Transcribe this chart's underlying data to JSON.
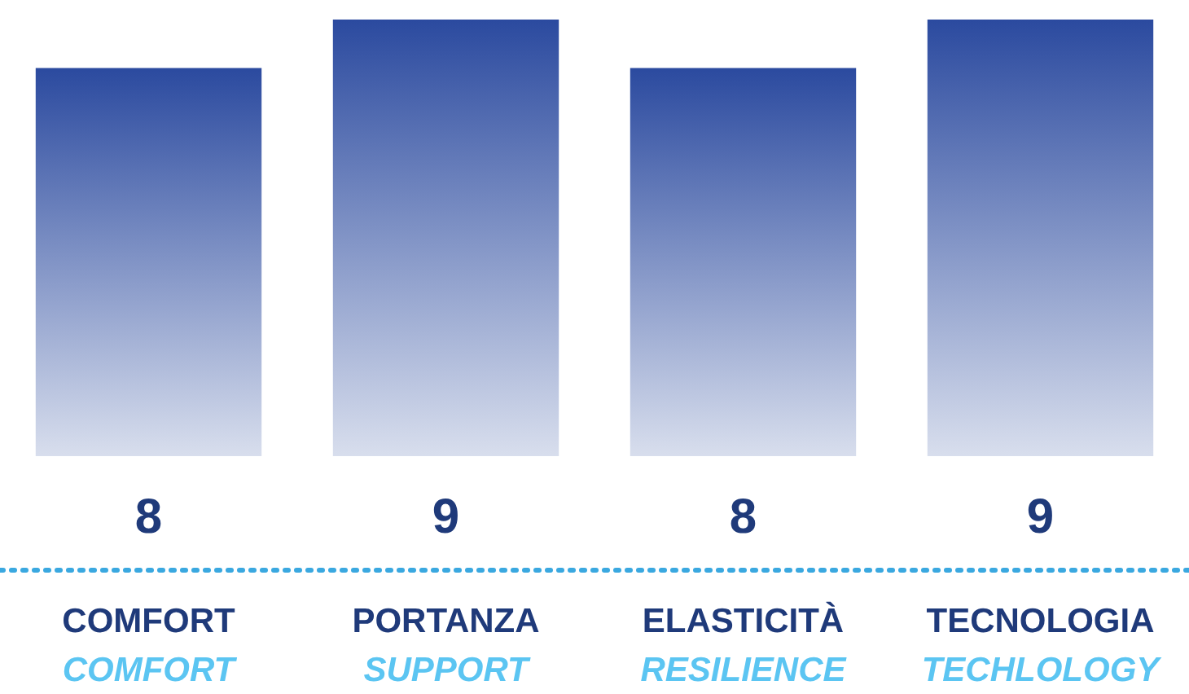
{
  "chart_data": {
    "type": "bar",
    "categories": [
      "COMFORT",
      "PORTANZA",
      "ELASTICITÀ",
      "TECNOLOGIA"
    ],
    "values": [
      8,
      9,
      8,
      9
    ],
    "color": "#2b4a9f",
    "data_labels": true,
    "annotations": [
      "COMFORT",
      "SUPPORT",
      "RESILIENCE",
      "TECHLOLOGY"
    ]
  }
}
